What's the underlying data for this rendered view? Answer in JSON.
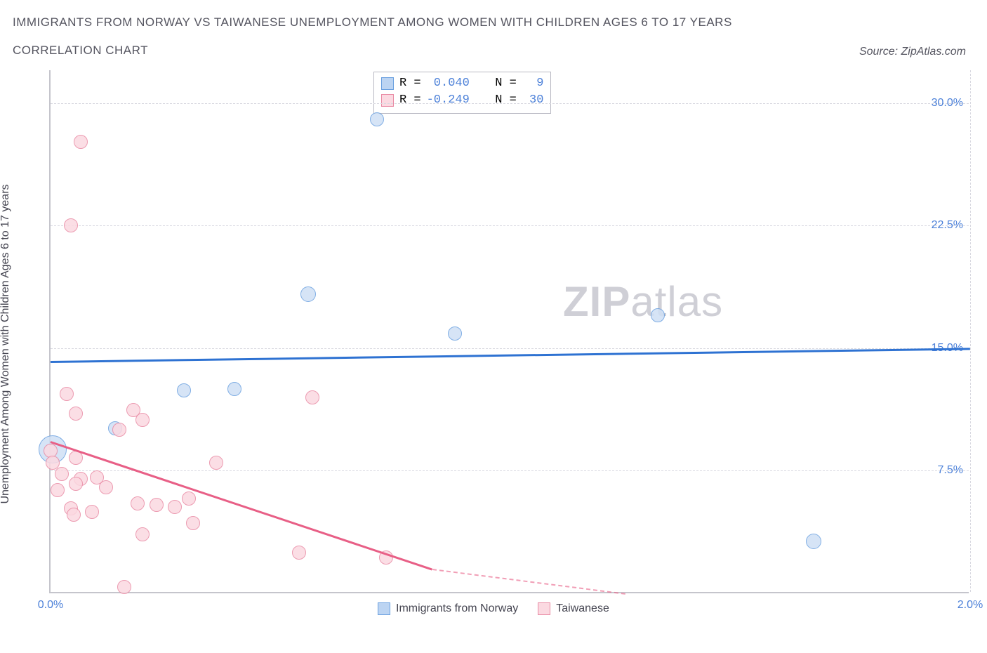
{
  "title_line1": "IMMIGRANTS FROM NORWAY VS TAIWANESE UNEMPLOYMENT AMONG WOMEN WITH CHILDREN AGES 6 TO 17 YEARS",
  "title_line2": "CORRELATION CHART",
  "source": "Source: ZipAtlas.com",
  "y_axis_label": "Unemployment Among Women with Children Ages 6 to 17 years",
  "watermark_bold": "ZIP",
  "watermark_light": "atlas",
  "chart": {
    "type": "scatter",
    "background_color": "#ffffff",
    "grid_color": "#d8d8e0",
    "axis_line_color": "#c5c5cc",
    "tick_text_color": "#4a7fd8",
    "xlim": [
      0.0,
      2.0
    ],
    "ylim": [
      0.0,
      32.0
    ],
    "xticks": [
      {
        "v": 0.0,
        "label": "0.0%"
      },
      {
        "v": 2.0,
        "label": "2.0%"
      }
    ],
    "yticks": [
      {
        "v": 7.5,
        "label": "7.5%"
      },
      {
        "v": 15.0,
        "label": "15.0%"
      },
      {
        "v": 22.5,
        "label": "22.5%"
      },
      {
        "v": 30.0,
        "label": "30.0%"
      }
    ],
    "series": [
      {
        "id": "norway",
        "label": "Immigrants from Norway",
        "fill": "#cfe0f5",
        "stroke": "#6aa0e0",
        "swatch_fill": "#bcd4f2",
        "swatch_stroke": "#6aa0e0",
        "R": "0.040",
        "N": "9",
        "radius": 10,
        "points": [
          {
            "x": 0.71,
            "y": 29.0,
            "r": 10
          },
          {
            "x": 0.56,
            "y": 18.3,
            "r": 11
          },
          {
            "x": 0.88,
            "y": 15.9,
            "r": 10
          },
          {
            "x": 1.32,
            "y": 17.0,
            "r": 10
          },
          {
            "x": 0.29,
            "y": 12.4,
            "r": 10
          },
          {
            "x": 0.4,
            "y": 12.5,
            "r": 10
          },
          {
            "x": 0.14,
            "y": 10.1,
            "r": 10
          },
          {
            "x": 0.005,
            "y": 8.8,
            "r": 20
          },
          {
            "x": 1.66,
            "y": 3.2,
            "r": 11
          }
        ],
        "trend": {
          "x1": 0.0,
          "y1": 14.2,
          "x2": 2.0,
          "y2": 15.0,
          "color": "#2e72d2",
          "width": 2.5
        }
      },
      {
        "id": "taiwanese",
        "label": "Taiwanese",
        "fill": "#fbd9e1",
        "stroke": "#e98aa4",
        "swatch_fill": "#fbd9e1",
        "swatch_stroke": "#e98aa4",
        "R": "-0.249",
        "N": "30",
        "radius": 10,
        "points": [
          {
            "x": 0.065,
            "y": 27.6
          },
          {
            "x": 0.045,
            "y": 22.5
          },
          {
            "x": 0.035,
            "y": 12.2
          },
          {
            "x": 0.055,
            "y": 11.0
          },
          {
            "x": 0.18,
            "y": 11.2
          },
          {
            "x": 0.2,
            "y": 10.6
          },
          {
            "x": 0.15,
            "y": 10.0
          },
          {
            "x": 0.57,
            "y": 12.0
          },
          {
            "x": 0.0,
            "y": 8.7
          },
          {
            "x": 0.005,
            "y": 8.0
          },
          {
            "x": 0.055,
            "y": 8.3
          },
          {
            "x": 0.025,
            "y": 7.3
          },
          {
            "x": 0.065,
            "y": 7.0
          },
          {
            "x": 0.015,
            "y": 6.3
          },
          {
            "x": 0.055,
            "y": 6.7
          },
          {
            "x": 0.12,
            "y": 6.5
          },
          {
            "x": 0.1,
            "y": 7.1
          },
          {
            "x": 0.045,
            "y": 5.2
          },
          {
            "x": 0.09,
            "y": 5.0
          },
          {
            "x": 0.19,
            "y": 5.5
          },
          {
            "x": 0.23,
            "y": 5.4
          },
          {
            "x": 0.3,
            "y": 5.8
          },
          {
            "x": 0.27,
            "y": 5.3
          },
          {
            "x": 0.36,
            "y": 8.0
          },
          {
            "x": 0.2,
            "y": 3.6
          },
          {
            "x": 0.31,
            "y": 4.3
          },
          {
            "x": 0.54,
            "y": 2.5
          },
          {
            "x": 0.73,
            "y": 2.2
          },
          {
            "x": 0.16,
            "y": 0.4
          },
          {
            "x": 0.05,
            "y": 4.8
          }
        ],
        "trend": {
          "x1": 0.0,
          "y1": 9.3,
          "x2": 0.83,
          "y2": 1.5,
          "color": "#e85f86",
          "width": 2.5,
          "dash_x2": 1.25,
          "dash_y2": -2.5
        }
      }
    ]
  },
  "legend_top": {
    "R_label": "R =",
    "N_label": "N ="
  },
  "legend_bottom": {
    "items": [
      "Immigrants from Norway",
      "Taiwanese"
    ]
  }
}
